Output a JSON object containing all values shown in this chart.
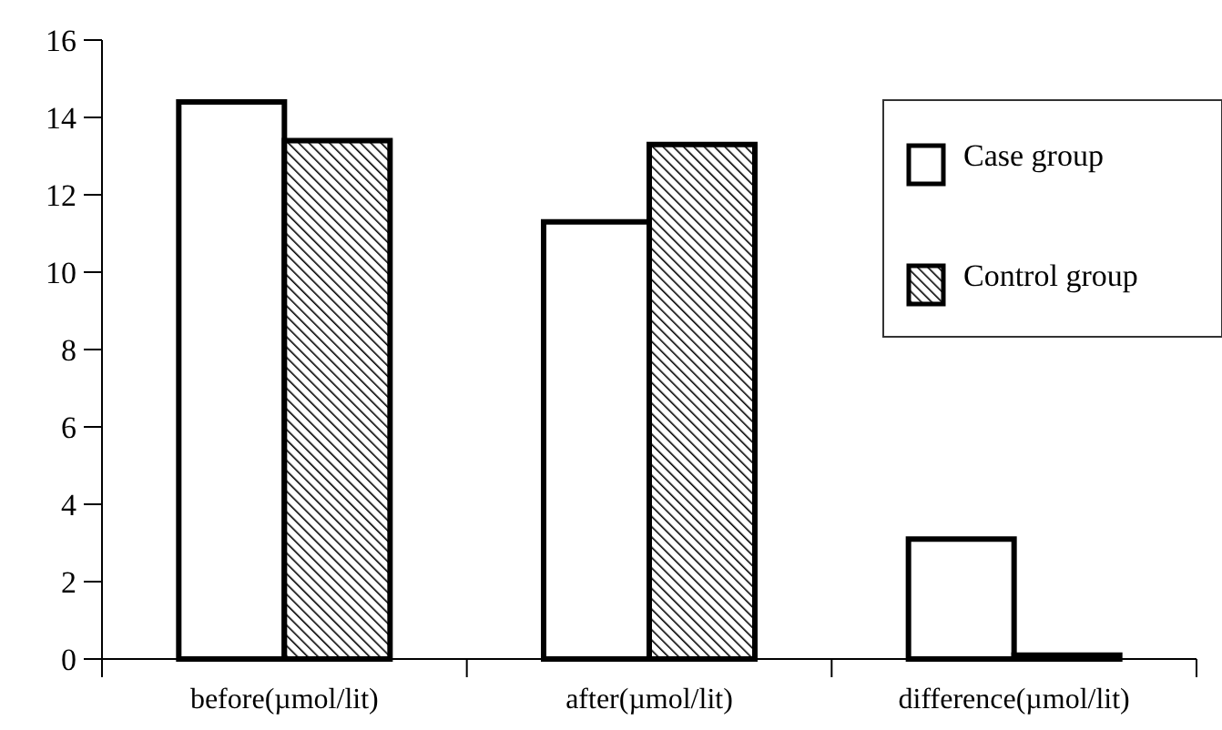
{
  "chart_data": {
    "type": "bar",
    "categories": [
      "before(µmol/lit)",
      "after(µmol/lit)",
      "difference(µmol/lit)"
    ],
    "series": [
      {
        "name": "Case group",
        "color": "#ffffff",
        "values": [
          14.4,
          11.3,
          3.1
        ]
      },
      {
        "name": "Control group",
        "color": "#000000",
        "values": [
          13.4,
          13.3,
          0.1
        ]
      }
    ],
    "ylim": [
      0,
      16
    ],
    "yticks": [
      0,
      2,
      4,
      6,
      8,
      10,
      12,
      14,
      16
    ],
    "grid": false,
    "legend": "top right"
  }
}
